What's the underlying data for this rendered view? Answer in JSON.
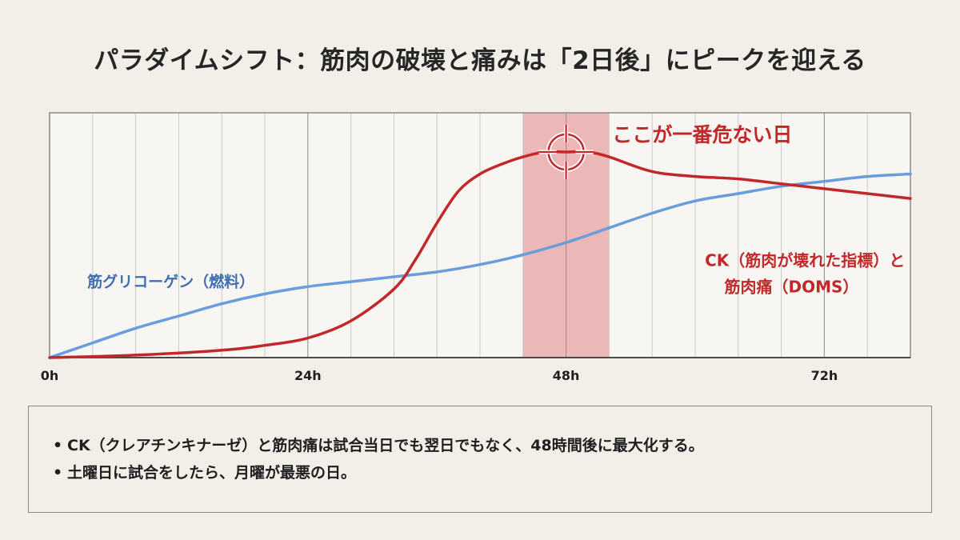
{
  "title": "パラダイムシフト：筋肉の破壊と痛みは「2日後」にピークを迎える",
  "chart_data": {
    "type": "line",
    "xlabel": "",
    "ylabel": "",
    "xlim": [
      0,
      80
    ],
    "ylim": [
      0,
      1
    ],
    "x_ticks": [
      {
        "value": 0,
        "label": "0h"
      },
      {
        "value": 24,
        "label": "24h"
      },
      {
        "value": 48,
        "label": "48h"
      },
      {
        "value": 72,
        "label": "72h"
      }
    ],
    "grid": true,
    "highlight": {
      "x_range": [
        44,
        52
      ],
      "color": "#e8a3a3"
    },
    "annotation": {
      "text": "ここが一番危ない日",
      "x": 48,
      "y": 0.84,
      "color": "#c0282a"
    },
    "series": [
      {
        "name": "CK（筋肉が壊れた指標）と\n筋肉痛（DOMS）",
        "label_lines": [
          "CK（筋肉が壊れた指標）と",
          "筋肉痛（DOMS）"
        ],
        "color": "#c0282a",
        "x": [
          0,
          8,
          16,
          20,
          24,
          28,
          32,
          34,
          36,
          38,
          40,
          42,
          44,
          46,
          48,
          50,
          52,
          56,
          60,
          64,
          68,
          72,
          76,
          80
        ],
        "y": [
          0,
          0.01,
          0.03,
          0.05,
          0.08,
          0.15,
          0.28,
          0.4,
          0.55,
          0.68,
          0.75,
          0.79,
          0.82,
          0.84,
          0.84,
          0.84,
          0.82,
          0.76,
          0.74,
          0.73,
          0.71,
          0.69,
          0.67,
          0.65
        ]
      },
      {
        "name": "筋グリコーゲン（燃料）",
        "label_lines": [
          "筋グリコーゲン（燃料）"
        ],
        "color": "#6a9ddb",
        "x": [
          0,
          4,
          8,
          12,
          16,
          20,
          24,
          28,
          32,
          36,
          40,
          44,
          48,
          52,
          56,
          60,
          64,
          68,
          72,
          76,
          80
        ],
        "y": [
          0,
          0.06,
          0.12,
          0.17,
          0.22,
          0.26,
          0.29,
          0.31,
          0.33,
          0.35,
          0.38,
          0.42,
          0.47,
          0.53,
          0.59,
          0.64,
          0.67,
          0.7,
          0.72,
          0.74,
          0.75
        ]
      }
    ]
  },
  "bullets": [
    "CK（クレアチンキナーゼ）と筋肉痛は試合当日でも翌日でもなく、48時間後に最大化する。",
    "土曜日に試合をしたら、月曜が最悪の日。"
  ]
}
